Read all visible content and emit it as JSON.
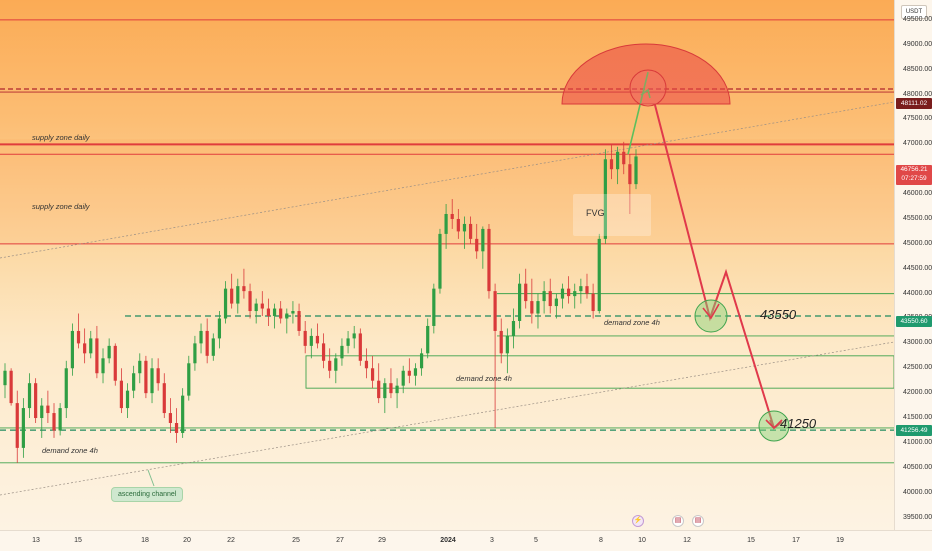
{
  "price_scale": {
    "currency": "USDT",
    "ticks": [
      "49500.00",
      "49000.00",
      "48500.00",
      "48000.00",
      "47500.00",
      "47000.00",
      "46500.00",
      "46000.00",
      "45500.00",
      "45000.00",
      "44500.00",
      "44000.00",
      "43500.00",
      "43000.00",
      "42500.00",
      "42000.00",
      "41500.00",
      "41000.00",
      "40500.00",
      "40000.00",
      "39500.00"
    ],
    "tags": {
      "supply_top": "48111.02",
      "current_price": "46756.21",
      "countdown": "07:27:59",
      "target_one": "43550.60",
      "target_two": "41256.49"
    }
  },
  "time_axis": [
    "13",
    "15",
    "18",
    "20",
    "22",
    "25",
    "27",
    "29",
    "2024",
    "3",
    "5",
    "8",
    "10",
    "12",
    "15",
    "17",
    "19"
  ],
  "annotations": {
    "supply_zone_1": "supply zone daily",
    "supply_zone_2": "supply zone daily",
    "fvg": "FVG",
    "demand_zone_1": "demand zone 4h",
    "demand_zone_2": "demand zone 4h",
    "demand_zone_3": "demand zone 4h",
    "ascending_channel": "ascending channel",
    "target_one": "43550",
    "target_two": "41250"
  },
  "colors": {
    "up": "#2f9e44",
    "down": "#d93a3a",
    "resistance": "#e03c3c",
    "demand": "#3fa34d",
    "projection": "#e0394b",
    "current_tag": "#e04848",
    "supply_tag": "#7a1d1d",
    "target_tag": "#1f9a6e"
  },
  "icons": [
    "lightning-icon",
    "us-flag-icon",
    "us-flag-icon"
  ],
  "chart_data": {
    "type": "candlestick",
    "symbol_quote": "USDT",
    "ylim": [
      39250,
      49900
    ],
    "levels": {
      "supply_top": 48111.02,
      "current_price": 46756.21,
      "target_one": 43550.6,
      "target_two": 41256.49
    },
    "candles": [
      [
        42160,
        42600,
        41900,
        42450
      ],
      [
        42450,
        42500,
        41750,
        41800
      ],
      [
        41800,
        42050,
        40600,
        40900
      ],
      [
        40900,
        41900,
        40700,
        41700
      ],
      [
        41700,
        42400,
        41500,
        42200
      ],
      [
        42200,
        42300,
        41400,
        41500
      ],
      [
        41500,
        41900,
        41100,
        41750
      ],
      [
        41750,
        42050,
        41400,
        41600
      ],
      [
        41600,
        41800,
        41100,
        41250
      ],
      [
        41250,
        41800,
        41150,
        41700
      ],
      [
        41700,
        42650,
        41500,
        42500
      ],
      [
        42500,
        43400,
        42350,
        43250
      ],
      [
        43250,
        43600,
        42900,
        43000
      ],
      [
        43000,
        43300,
        42600,
        42800
      ],
      [
        42800,
        43250,
        42700,
        43100
      ],
      [
        43100,
        43350,
        42300,
        42400
      ],
      [
        42400,
        42900,
        42200,
        42700
      ],
      [
        42700,
        43100,
        42600,
        42950
      ],
      [
        42950,
        43000,
        42150,
        42250
      ],
      [
        42250,
        42500,
        41600,
        41700
      ],
      [
        41700,
        42200,
        41500,
        42050
      ],
      [
        42050,
        42550,
        41900,
        42400
      ],
      [
        42400,
        42800,
        42200,
        42650
      ],
      [
        42650,
        42750,
        41900,
        42000
      ],
      [
        42000,
        42700,
        41800,
        42500
      ],
      [
        42500,
        42700,
        42050,
        42200
      ],
      [
        42200,
        42400,
        41500,
        41600
      ],
      [
        41600,
        41900,
        41200,
        41400
      ],
      [
        41400,
        41700,
        41000,
        41200
      ],
      [
        41200,
        42100,
        41100,
        41950
      ],
      [
        41950,
        42750,
        41850,
        42600
      ],
      [
        42600,
        43150,
        42450,
        43000
      ],
      [
        43000,
        43400,
        42800,
        43250
      ],
      [
        43250,
        43500,
        42600,
        42750
      ],
      [
        42750,
        43200,
        42650,
        43100
      ],
      [
        43100,
        43650,
        42900,
        43500
      ],
      [
        43500,
        44250,
        43400,
        44100
      ],
      [
        44100,
        44400,
        43700,
        43800
      ],
      [
        43800,
        44300,
        43600,
        44150
      ],
      [
        44150,
        44500,
        43900,
        44050
      ],
      [
        44050,
        44200,
        43500,
        43650
      ],
      [
        43650,
        43900,
        43400,
        43800
      ],
      [
        43800,
        44050,
        43550,
        43700
      ],
      [
        43700,
        43900,
        43350,
        43550
      ],
      [
        43550,
        43800,
        43300,
        43700
      ],
      [
        43700,
        43850,
        43400,
        43500
      ],
      [
        43500,
        43700,
        43200,
        43600
      ],
      [
        43600,
        43850,
        43400,
        43650
      ],
      [
        43650,
        43800,
        43150,
        43250
      ],
      [
        43250,
        43450,
        42800,
        42950
      ],
      [
        42950,
        43300,
        42700,
        43150
      ],
      [
        43150,
        43400,
        42900,
        43000
      ],
      [
        43000,
        43200,
        42500,
        42650
      ],
      [
        42650,
        42900,
        42300,
        42450
      ],
      [
        42450,
        42800,
        42200,
        42700
      ],
      [
        42700,
        43100,
        42550,
        42950
      ],
      [
        42950,
        43250,
        42800,
        43100
      ],
      [
        43100,
        43350,
        42900,
        43200
      ],
      [
        43200,
        43300,
        42550,
        42650
      ],
      [
        42650,
        42900,
        42300,
        42500
      ],
      [
        42500,
        42750,
        42100,
        42250
      ],
      [
        42250,
        42600,
        41800,
        41900
      ],
      [
        41900,
        42300,
        41600,
        42200
      ],
      [
        42200,
        42500,
        41900,
        42000
      ],
      [
        42000,
        42300,
        41700,
        42150
      ],
      [
        42150,
        42550,
        42000,
        42450
      ],
      [
        42450,
        42700,
        42200,
        42350
      ],
      [
        42350,
        42600,
        42150,
        42500
      ],
      [
        42500,
        42900,
        42350,
        42800
      ],
      [
        42800,
        43500,
        42700,
        43350
      ],
      [
        43350,
        44200,
        43200,
        44100
      ],
      [
        44100,
        45300,
        44000,
        45200
      ],
      [
        45200,
        45800,
        44900,
        45600
      ],
      [
        45600,
        45900,
        45300,
        45500
      ],
      [
        45500,
        45700,
        45100,
        45250
      ],
      [
        45250,
        45550,
        44900,
        45400
      ],
      [
        45400,
        45550,
        45000,
        45100
      ],
      [
        45100,
        45400,
        44700,
        44850
      ],
      [
        44850,
        45350,
        44500,
        45300
      ],
      [
        45300,
        45400,
        43900,
        44050
      ],
      [
        44050,
        44200,
        41300,
        43250
      ],
      [
        43250,
        43500,
        42600,
        42800
      ],
      [
        42800,
        43300,
        42400,
        43150
      ],
      [
        43150,
        43700,
        42900,
        43450
      ],
      [
        43450,
        44400,
        43300,
        44200
      ],
      [
        44200,
        44500,
        43700,
        43850
      ],
      [
        43850,
        44300,
        43400,
        43600
      ],
      [
        43600,
        44000,
        43300,
        43850
      ],
      [
        43850,
        44250,
        43600,
        44050
      ],
      [
        44050,
        44300,
        43600,
        43750
      ],
      [
        43750,
        44000,
        43500,
        43900
      ],
      [
        43900,
        44200,
        43700,
        44100
      ],
      [
        44100,
        44350,
        43800,
        43950
      ],
      [
        43950,
        44200,
        43700,
        44050
      ],
      [
        44050,
        44300,
        43800,
        44150
      ],
      [
        44150,
        44400,
        43900,
        44000
      ],
      [
        44000,
        44200,
        43500,
        43650
      ],
      [
        43650,
        45200,
        43600,
        45100
      ],
      [
        45100,
        46900,
        45000,
        46700
      ],
      [
        46700,
        47000,
        46300,
        46500
      ],
      [
        46500,
        46950,
        46200,
        46850
      ],
      [
        46850,
        47050,
        46400,
        46600
      ],
      [
        46600,
        46800,
        45600,
        46200
      ],
      [
        46200,
        46900,
        46100,
        46756
      ]
    ],
    "zones": {
      "supply": [
        [
          46800,
          47100
        ],
        [
          45000,
          47000
        ],
        [
          48050,
          48150
        ]
      ],
      "demand_4h": [
        [
          41750,
          42100
        ],
        [
          42200,
          42750
        ],
        [
          43150,
          44000
        ]
      ]
    },
    "projection_path": [
      [
        46800,
        "now"
      ],
      [
        48400,
        "peak"
      ],
      [
        43550,
        "target_one"
      ],
      [
        44600,
        "bounce"
      ],
      [
        41256,
        "target_two"
      ]
    ]
  }
}
